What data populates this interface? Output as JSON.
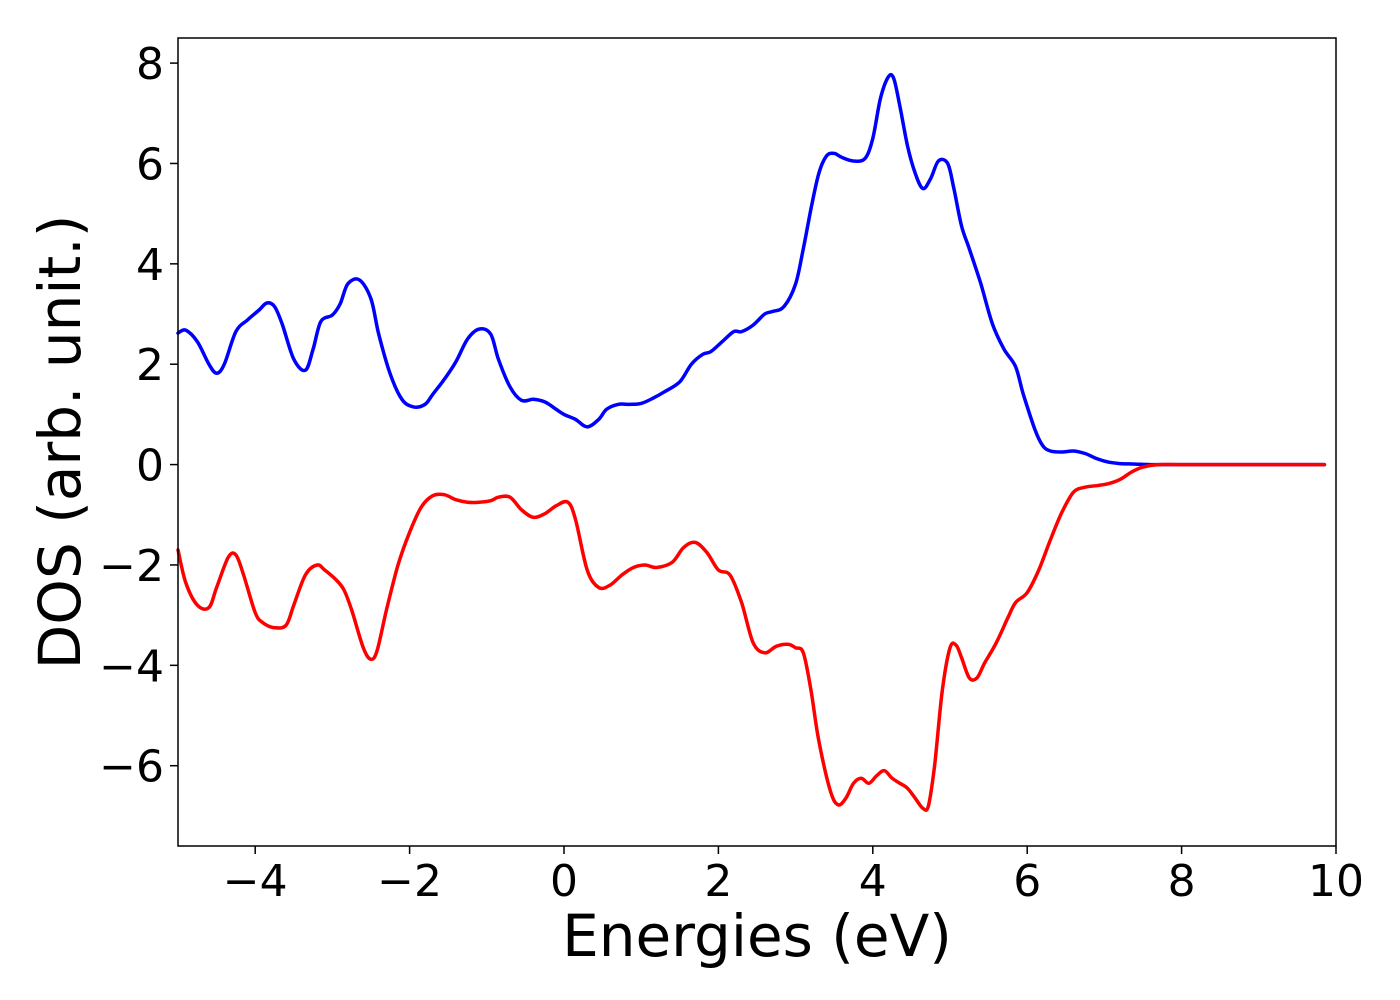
{
  "chart_data": {
    "type": "line",
    "title": "",
    "xlabel": "Energies (eV)",
    "ylabel": "DOS (arb. unit.)",
    "xlim": [
      -5,
      10
    ],
    "ylim": [
      -7.6,
      8.5
    ],
    "xticks": [
      -4,
      -2,
      0,
      2,
      4,
      6,
      8,
      10
    ],
    "yticks": [
      -6,
      -4,
      -2,
      0,
      2,
      4,
      6,
      8
    ],
    "xtick_labels": [
      "−4",
      "−2",
      "0",
      "2",
      "4",
      "6",
      "8",
      "10"
    ],
    "ytick_labels": [
      "−6",
      "−4",
      "−2",
      "0",
      "2",
      "4",
      "6",
      "8"
    ],
    "grid": false,
    "legend": "none",
    "series": [
      {
        "color": "#0000ff",
        "x": [
          -5.0,
          -4.9,
          -4.75,
          -4.6,
          -4.5,
          -4.4,
          -4.25,
          -4.1,
          -3.95,
          -3.85,
          -3.75,
          -3.65,
          -3.5,
          -3.35,
          -3.25,
          -3.15,
          -3.0,
          -2.9,
          -2.8,
          -2.65,
          -2.5,
          -2.4,
          -2.25,
          -2.1,
          -1.95,
          -1.8,
          -1.7,
          -1.55,
          -1.4,
          -1.25,
          -1.1,
          -0.95,
          -0.85,
          -0.7,
          -0.55,
          -0.4,
          -0.25,
          -0.1,
          0.0,
          0.15,
          0.3,
          0.45,
          0.55,
          0.7,
          0.85,
          1.0,
          1.15,
          1.3,
          1.5,
          1.65,
          1.8,
          1.9,
          2.05,
          2.2,
          2.3,
          2.45,
          2.6,
          2.7,
          2.85,
          3.0,
          3.1,
          3.2,
          3.3,
          3.4,
          3.5,
          3.6,
          3.75,
          3.9,
          4.0,
          4.1,
          4.2,
          4.27,
          4.35,
          4.45,
          4.55,
          4.65,
          4.75,
          4.85,
          4.97,
          5.05,
          5.15,
          5.25,
          5.4,
          5.55,
          5.7,
          5.85,
          5.95,
          6.1,
          6.2,
          6.3,
          6.45,
          6.6,
          6.75,
          6.9,
          7.05,
          7.2,
          7.4,
          7.6,
          8.0,
          8.5,
          9.0,
          9.5,
          9.85
        ],
        "y": [
          2.62,
          2.68,
          2.45,
          2.0,
          1.82,
          2.0,
          2.65,
          2.88,
          3.08,
          3.22,
          3.15,
          2.8,
          2.1,
          1.88,
          2.3,
          2.85,
          2.98,
          3.2,
          3.6,
          3.68,
          3.3,
          2.6,
          1.8,
          1.3,
          1.15,
          1.2,
          1.4,
          1.7,
          2.05,
          2.5,
          2.7,
          2.6,
          2.1,
          1.55,
          1.28,
          1.3,
          1.25,
          1.1,
          1.0,
          0.9,
          0.75,
          0.9,
          1.1,
          1.2,
          1.2,
          1.22,
          1.32,
          1.45,
          1.65,
          2.0,
          2.2,
          2.25,
          2.45,
          2.65,
          2.65,
          2.78,
          3.0,
          3.05,
          3.15,
          3.6,
          4.3,
          5.1,
          5.8,
          6.15,
          6.2,
          6.12,
          6.05,
          6.1,
          6.5,
          7.3,
          7.72,
          7.7,
          7.15,
          6.35,
          5.8,
          5.5,
          5.7,
          6.05,
          6.0,
          5.5,
          4.75,
          4.3,
          3.6,
          2.8,
          2.3,
          1.95,
          1.4,
          0.7,
          0.38,
          0.27,
          0.25,
          0.27,
          0.22,
          0.12,
          0.05,
          0.02,
          0.01,
          0.0,
          0.0,
          0.0,
          0.0,
          0.0,
          0.0
        ]
      },
      {
        "color": "#ff0000",
        "x": [
          -5.0,
          -4.9,
          -4.75,
          -4.6,
          -4.5,
          -4.35,
          -4.25,
          -4.15,
          -4.0,
          -3.9,
          -3.75,
          -3.6,
          -3.5,
          -3.35,
          -3.2,
          -3.1,
          -2.95,
          -2.85,
          -2.75,
          -2.6,
          -2.5,
          -2.42,
          -2.3,
          -2.15,
          -2.0,
          -1.85,
          -1.7,
          -1.55,
          -1.4,
          -1.25,
          -1.1,
          -0.95,
          -0.85,
          -0.7,
          -0.55,
          -0.4,
          -0.25,
          -0.1,
          0.05,
          0.15,
          0.3,
          0.45,
          0.6,
          0.75,
          0.9,
          1.05,
          1.2,
          1.4,
          1.55,
          1.7,
          1.85,
          2.0,
          2.15,
          2.3,
          2.45,
          2.6,
          2.75,
          2.9,
          3.0,
          3.1,
          3.2,
          3.3,
          3.45,
          3.55,
          3.65,
          3.75,
          3.85,
          3.95,
          4.05,
          4.15,
          4.25,
          4.35,
          4.45,
          4.55,
          4.65,
          4.72,
          4.8,
          4.9,
          5.0,
          5.08,
          5.15,
          5.25,
          5.35,
          5.45,
          5.6,
          5.75,
          5.85,
          6.0,
          6.15,
          6.3,
          6.45,
          6.6,
          6.75,
          6.9,
          7.05,
          7.2,
          7.35,
          7.5,
          7.7,
          8.0,
          8.5,
          9.0,
          9.85
        ],
        "y": [
          -1.7,
          -2.35,
          -2.8,
          -2.85,
          -2.45,
          -1.85,
          -1.8,
          -2.2,
          -2.95,
          -3.15,
          -3.25,
          -3.2,
          -2.8,
          -2.2,
          -2.0,
          -2.1,
          -2.3,
          -2.5,
          -2.9,
          -3.65,
          -3.88,
          -3.7,
          -2.9,
          -2.0,
          -1.35,
          -0.85,
          -0.62,
          -0.6,
          -0.7,
          -0.75,
          -0.75,
          -0.72,
          -0.65,
          -0.65,
          -0.9,
          -1.05,
          -0.98,
          -0.82,
          -0.75,
          -1.1,
          -2.1,
          -2.45,
          -2.4,
          -2.2,
          -2.05,
          -2.0,
          -2.05,
          -1.95,
          -1.65,
          -1.55,
          -1.75,
          -2.1,
          -2.2,
          -2.75,
          -3.55,
          -3.75,
          -3.62,
          -3.58,
          -3.65,
          -3.75,
          -4.5,
          -5.5,
          -6.5,
          -6.78,
          -6.65,
          -6.35,
          -6.25,
          -6.35,
          -6.2,
          -6.1,
          -6.25,
          -6.35,
          -6.45,
          -6.65,
          -6.85,
          -6.8,
          -6.0,
          -4.5,
          -3.65,
          -3.6,
          -3.85,
          -4.25,
          -4.25,
          -3.95,
          -3.55,
          -3.05,
          -2.75,
          -2.55,
          -2.1,
          -1.5,
          -0.95,
          -0.55,
          -0.45,
          -0.42,
          -0.38,
          -0.3,
          -0.15,
          -0.05,
          0.0,
          0.0,
          0.0,
          0.0,
          0.0
        ]
      }
    ]
  }
}
